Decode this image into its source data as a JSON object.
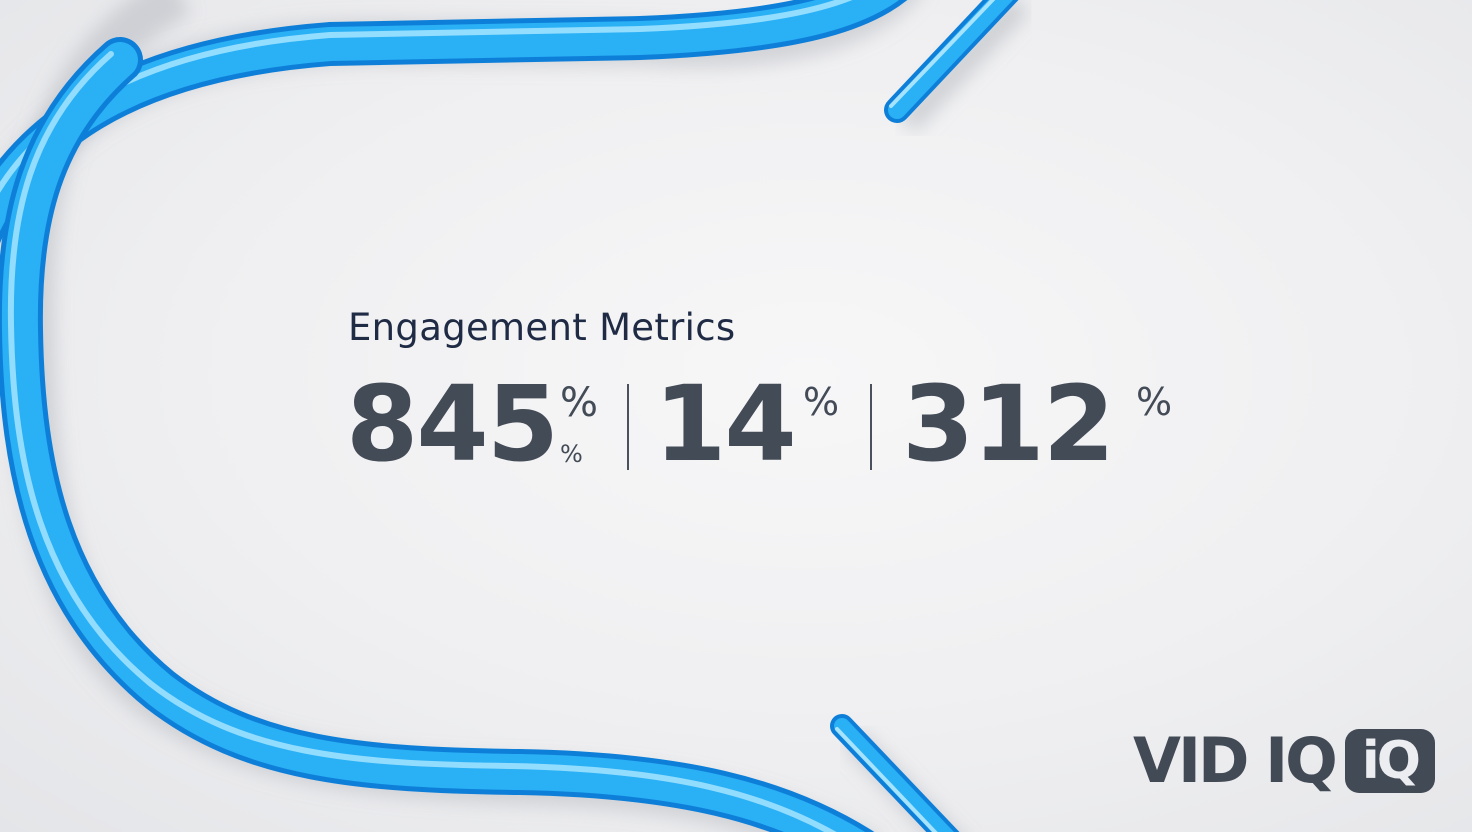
{
  "heading": "Engagement Metrics",
  "metrics": [
    {
      "value": "845",
      "unit": "%",
      "unit_secondary": "%"
    },
    {
      "value": "14",
      "unit": "%"
    },
    {
      "value": "312",
      "unit": "%"
    }
  ],
  "logo": {
    "text": "VID IQ",
    "badge": "iQ"
  },
  "colors": {
    "tube": "#1ea2f0",
    "text_dark": "#1f2b45",
    "metric": "#434b57",
    "background": "#efeff1"
  }
}
